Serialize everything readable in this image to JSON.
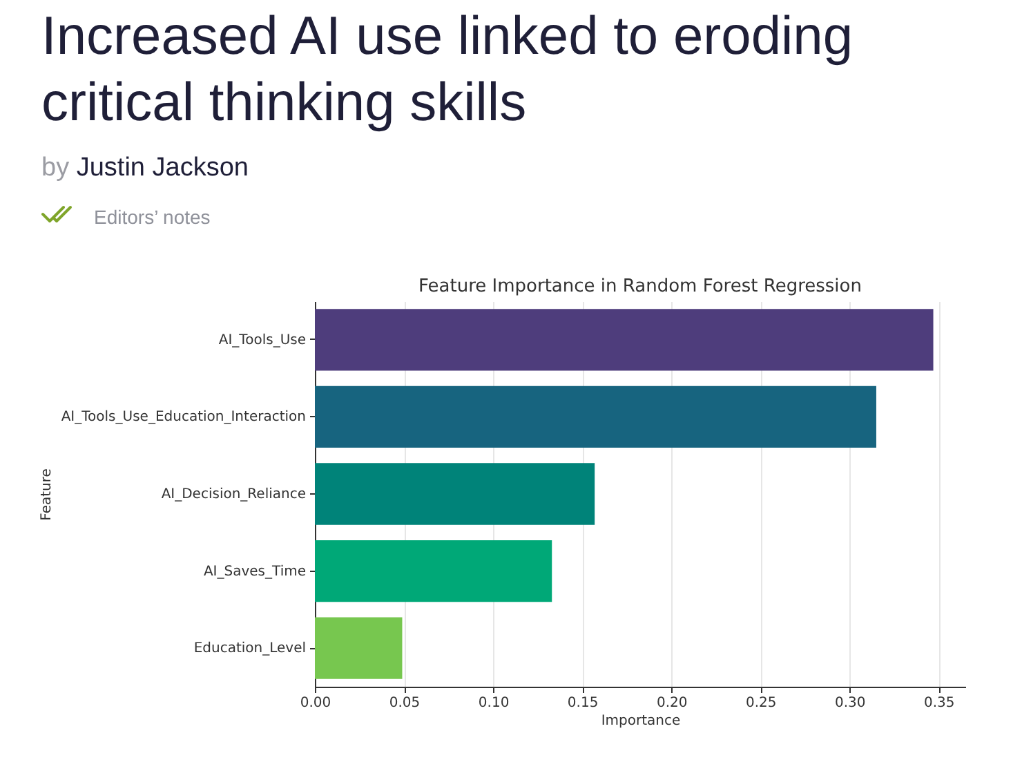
{
  "chart_data": {
    "type": "bar",
    "orientation": "horizontal",
    "title": "Feature Importance in Random Forest Regression",
    "xlabel": "Importance",
    "ylabel": "Feature",
    "annotations": [
      "Increased AI use linked to eroding critical thinking skills",
      "by Justin Jackson",
      "Editors’ notes"
    ],
    "categories": [
      "AI_Tools_Use",
      "AI_Tools_Use_Education_Interaction",
      "AI_Decision_Reliance",
      "AI_Saves_Time",
      "Education_Level"
    ],
    "values": [
      0.347,
      0.315,
      0.157,
      0.133,
      0.049
    ],
    "colors": [
      "#4e3d7c",
      "#17647f",
      "#008379",
      "#00a877",
      "#77c74f"
    ],
    "xlim": [
      0,
      0.365
    ],
    "xticks": [
      {
        "value": 0,
        "label": "0.00"
      },
      0.05,
      {
        "value": 0.1,
        "label": "0.10"
      },
      0.15,
      {
        "value": 0.2,
        "label": "0.20"
      },
      0.25,
      {
        "value": 0.3,
        "label": "0.30"
      },
      0.35
    ],
    "grid": "x"
  }
}
